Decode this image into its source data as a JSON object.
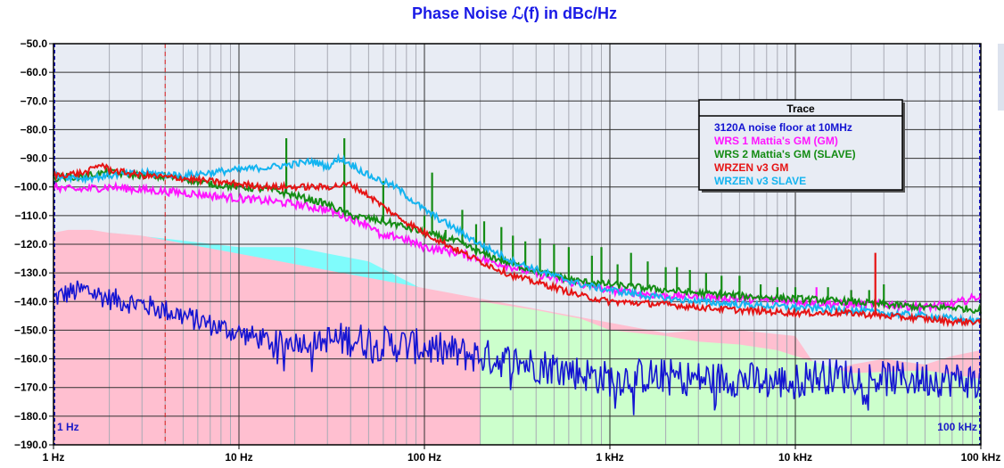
{
  "chart_data": {
    "type": "line",
    "title": "Phase Noise ℒ(f) in dBc/Hz",
    "x_scale": "log",
    "xlim": [
      1,
      100000
    ],
    "ylim": [
      -190,
      -50
    ],
    "x_ticks": [
      {
        "value": 1,
        "label": "1 Hz"
      },
      {
        "value": 10,
        "label": "10 Hz"
      },
      {
        "value": 100,
        "label": "100 Hz"
      },
      {
        "value": 1000,
        "label": "1 kHz"
      },
      {
        "value": 10000,
        "label": "10 kHz"
      },
      {
        "value": 100000,
        "label": "100 kHz"
      }
    ],
    "y_ticks": [
      -50,
      -60,
      -70,
      -80,
      -90,
      -100,
      -110,
      -120,
      -130,
      -140,
      -150,
      -160,
      -170,
      -180,
      -190
    ],
    "y_tick_labels": [
      "−50.0",
      "−60.0",
      "−70.0",
      "−80.0",
      "−90.0",
      "−100.0",
      "−110.0",
      "−120.0",
      "−130.0",
      "−140.0",
      "−150.0",
      "−160.0",
      "−170.0",
      "−180.0",
      "−190.0"
    ],
    "corner_labels": {
      "left": "1 Hz",
      "right": "100 kHz"
    },
    "marker_line": {
      "x": 4,
      "color": "#e02020"
    },
    "legend": {
      "title": "Trace",
      "placement": "top-right"
    },
    "floor_regions": [
      {
        "name": "cyan-floor",
        "color": "#7ffcfc",
        "x": [
          1,
          2,
          4,
          10,
          20,
          50,
          100,
          200,
          300,
          500,
          1000,
          2000,
          5000,
          10000,
          20000,
          50000,
          100000
        ],
        "y": [
          -116,
          -116,
          -118,
          -121,
          -121,
          -126,
          -136,
          -145,
          -152,
          -155,
          -156,
          -158,
          -160,
          -163,
          -164,
          -164,
          -164
        ]
      },
      {
        "name": "pink-floor",
        "color": "#ffbfd0",
        "x": [
          1,
          1.2,
          1.6,
          2,
          3,
          2000,
          3000,
          5000,
          10000,
          14000,
          20000,
          30000,
          50000,
          70000,
          100000
        ],
        "y": [
          -116,
          -115,
          -115,
          -116,
          -117,
          -151,
          -150,
          -150,
          -152,
          -166,
          -162,
          -160,
          -162,
          -159,
          -157
        ]
      },
      {
        "name": "green-floor",
        "color": "#ccffcc",
        "x": [
          200,
          400,
          700,
          1000,
          2000,
          3000,
          5000,
          8000,
          10000,
          20000,
          50000,
          100000
        ],
        "y": [
          -140,
          -143,
          -146,
          -150,
          -152,
          -154,
          -155,
          -157,
          -159,
          -165,
          -164,
          -167
        ]
      }
    ],
    "series": [
      {
        "name": "3120A noise floor at 10MHz",
        "color": "#1414d2",
        "x": [
          1,
          1.2,
          1.5,
          2,
          3,
          4,
          5,
          7,
          10,
          15,
          20,
          30,
          40,
          50,
          70,
          100,
          150,
          200,
          300,
          400,
          500,
          700,
          1000,
          1500,
          2000,
          3000,
          5000,
          7000,
          10000,
          12000,
          15000,
          20000,
          30000,
          50000,
          70000,
          100000
        ],
        "y": [
          -139,
          -137,
          -136,
          -139,
          -141,
          -143,
          -145,
          -148,
          -151,
          -154,
          -154,
          -154,
          -153,
          -154,
          -155,
          -156,
          -158,
          -159,
          -161,
          -162,
          -163,
          -165,
          -167,
          -166,
          -166,
          -167,
          -167,
          -168,
          -168,
          -166,
          -166,
          -166,
          -167,
          -167,
          -167,
          -168
        ]
      },
      {
        "name": "WRS 1 Mattia's GM (GM)",
        "color": "#ff14ff",
        "x": [
          1,
          1.3,
          2,
          3,
          5,
          7,
          10,
          15,
          20,
          30,
          40,
          50,
          60,
          70,
          100,
          150,
          200,
          300,
          500,
          700,
          1000,
          2000,
          3000,
          5000,
          10000,
          20000,
          30000,
          50000,
          70000,
          100000
        ],
        "y": [
          -100,
          -101,
          -100,
          -101,
          -102,
          -103,
          -104,
          -105,
          -106,
          -108,
          -111,
          -113,
          -118,
          -117,
          -121,
          -123,
          -125,
          -128,
          -132,
          -134,
          -136,
          -138,
          -138,
          -139,
          -140,
          -141,
          -141,
          -142,
          -141,
          -138
        ]
      },
      {
        "name": "WRS 2 Mattia's GM (SLAVE)",
        "color": "#148c14",
        "x": [
          1,
          1.5,
          2,
          3,
          5,
          7,
          10,
          15,
          20,
          30,
          40,
          50,
          70,
          100,
          150,
          200,
          300,
          500,
          700,
          1000,
          2000,
          3000,
          5000,
          10000,
          20000,
          30000,
          50000,
          70000,
          100000
        ],
        "y": [
          -97,
          -96,
          -95,
          -96,
          -97,
          -99,
          -100,
          -101,
          -103,
          -106,
          -110,
          -111,
          -113,
          -116,
          -119,
          -123,
          -127,
          -131,
          -133,
          -134,
          -136,
          -137,
          -138,
          -139,
          -140,
          -141,
          -142,
          -142,
          -143
        ]
      },
      {
        "name": "WRZEN v3 GM",
        "color": "#e61414",
        "x": [
          1,
          1.5,
          1.8,
          2,
          3,
          5,
          7,
          10,
          15,
          20,
          30,
          40,
          50,
          70,
          100,
          150,
          200,
          300,
          500,
          700,
          1000,
          2000,
          3000,
          5000,
          10000,
          20000,
          30000,
          50000,
          70000,
          100000
        ],
        "y": [
          -96,
          -95,
          -92,
          -94,
          -96,
          -97,
          -98,
          -99,
          -100,
          -100,
          -100,
          -99,
          -103,
          -110,
          -116,
          -122,
          -126,
          -131,
          -135,
          -138,
          -140,
          -141,
          -142,
          -143,
          -144,
          -144,
          -145,
          -146,
          -147,
          -147
        ]
      },
      {
        "name": "WRZEN v3 SLAVE",
        "color": "#14b4f0",
        "x": [
          1,
          1.5,
          2,
          3,
          5,
          7,
          10,
          15,
          20,
          25,
          30,
          35,
          40,
          50,
          70,
          100,
          150,
          200,
          300,
          500,
          700,
          1000,
          2000,
          3000,
          5000,
          10000,
          20000,
          30000,
          50000,
          70000,
          100000
        ],
        "y": [
          -96,
          -97,
          -96,
          -95,
          -96,
          -95,
          -94,
          -93,
          -92,
          -91,
          -93,
          -90,
          -92,
          -96,
          -100,
          -108,
          -115,
          -120,
          -126,
          -131,
          -134,
          -136,
          -139,
          -140,
          -141,
          -142,
          -143,
          -144,
          -145,
          -146,
          -147
        ]
      }
    ],
    "spurs": [
      {
        "series": 2,
        "x": [
          18,
          37,
          60,
          100,
          110,
          130,
          160,
          190,
          210,
          260,
          300,
          350,
          420,
          500,
          600,
          800,
          900,
          1100,
          1300,
          1600,
          2000,
          2300,
          2700,
          3300,
          4000,
          5000,
          6500,
          8000,
          10000,
          15000,
          20000,
          25000,
          30000
        ],
        "y": [
          -83,
          -83,
          -98,
          -110,
          -95,
          -115,
          -108,
          -113,
          -112,
          -114,
          -117,
          -119,
          -118,
          -120,
          -121,
          -124,
          -121,
          -127,
          -123,
          -126,
          -128,
          -128,
          -129,
          -130,
          -131,
          -131,
          -134,
          -135,
          -135,
          -135,
          -136,
          -136,
          -134
        ]
      },
      {
        "series": 3,
        "x": [
          27000
        ],
        "y": [
          -123
        ]
      },
      {
        "series": 1,
        "x": [
          13000,
          20000
        ],
        "y": [
          -135,
          -136
        ]
      }
    ]
  }
}
